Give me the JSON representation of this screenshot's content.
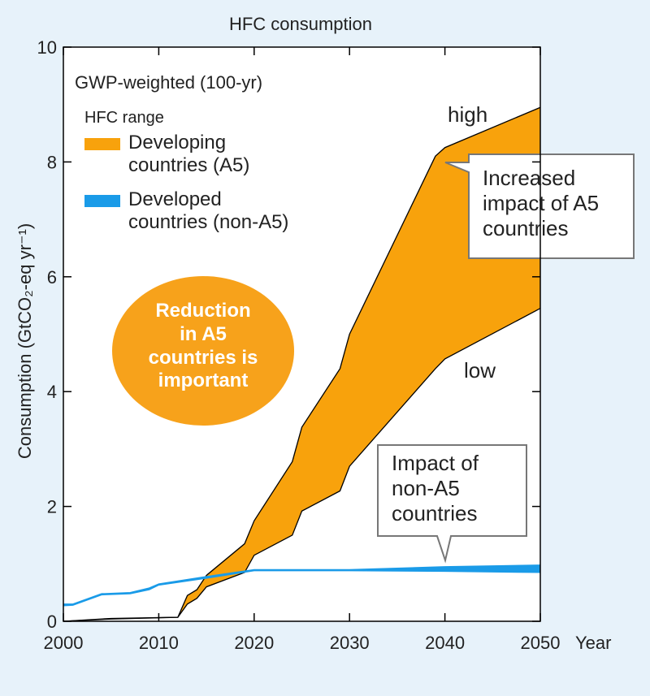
{
  "chart_data": {
    "type": "area_range",
    "title": "HFC consumption",
    "subtitle": "GWP-weighted (100-yr)",
    "legend_title": "HFC range",
    "x_label": "Year",
    "y_label": "Consumption (GtCO₂-eq yr⁻¹)",
    "xlim": [
      2000,
      2050
    ],
    "ylim": [
      0,
      10
    ],
    "xticks": [
      2000,
      2010,
      2020,
      2030,
      2040,
      2050
    ],
    "yticks": [
      0,
      2,
      4,
      6,
      8,
      10
    ],
    "grid": false,
    "series": [
      {
        "name": "Developing\ncountries (A5)",
        "color": "#f8a20c",
        "outline": "#000000",
        "x": [
          2000,
          2005,
          2012,
          2013,
          2014,
          2015,
          2019,
          2020,
          2024,
          2025,
          2029,
          2030,
          2039,
          2040,
          2050
        ],
        "high": [
          0,
          0.05,
          0.07,
          0.45,
          0.55,
          0.8,
          1.35,
          1.75,
          2.78,
          3.38,
          4.4,
          5.0,
          8.1,
          8.25,
          8.95
        ],
        "low": [
          0,
          0.04,
          0.07,
          0.3,
          0.4,
          0.6,
          0.85,
          1.15,
          1.5,
          1.92,
          2.27,
          2.7,
          4.4,
          4.57,
          5.45
        ]
      },
      {
        "name": "Developed\ncountries (non-A5)",
        "color": "#1a9be8",
        "outline": "#1a9be8",
        "x": [
          2000,
          2001,
          2004,
          2007,
          2009,
          2010,
          2015,
          2020,
          2030,
          2040,
          2050
        ],
        "high": [
          0.3,
          0.3,
          0.48,
          0.5,
          0.58,
          0.65,
          0.78,
          0.9,
          0.9,
          0.95,
          0.98
        ],
        "low": [
          0.27,
          0.28,
          0.46,
          0.48,
          0.55,
          0.63,
          0.75,
          0.88,
          0.88,
          0.87,
          0.85
        ]
      }
    ],
    "annotations": [
      "high",
      "low",
      "Increased\nimpact of A5\ncountries",
      "Impact of\nnon-A5\ncountries",
      "Reduction\nin A5\ncountries is\nimportant"
    ]
  }
}
